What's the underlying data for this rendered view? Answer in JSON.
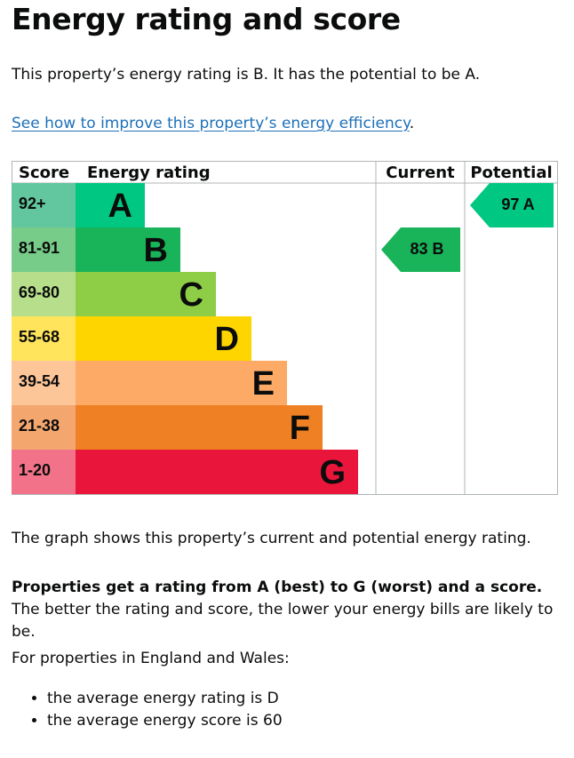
{
  "heading": "Energy rating and score",
  "intro": "This property’s energy rating is B. It has the potential to be A.",
  "improve_link": "See how to improve this property’s energy efficiency",
  "improve_suffix": ".",
  "chart_data": {
    "type": "table",
    "headers": {
      "score": "Score",
      "rating": "Energy rating",
      "current": "Current",
      "potential": "Potential"
    },
    "bands": [
      {
        "letter": "A",
        "range": "92+",
        "color": "#008054",
        "bar": "#00c781",
        "score_bg": "#62c69e"
      },
      {
        "letter": "B",
        "range": "81-91",
        "color": "#19b459",
        "bar": "#19b459",
        "score_bg": "#76cc88"
      },
      {
        "letter": "C",
        "range": "69-80",
        "color": "#8dce46",
        "bar": "#8dce46",
        "score_bg": "#b7df8b"
      },
      {
        "letter": "D",
        "range": "55-68",
        "color": "#ffd500",
        "bar": "#ffd500",
        "score_bg": "#ffe45c"
      },
      {
        "letter": "E",
        "range": "39-54",
        "color": "#fcaa65",
        "bar": "#fcaa65",
        "score_bg": "#fdc698"
      },
      {
        "letter": "F",
        "range": "21-38",
        "color": "#ef8023",
        "bar": "#ef8023",
        "score_bg": "#f4a66f"
      },
      {
        "letter": "G",
        "range": "1-20",
        "color": "#e9153b",
        "bar": "#e9153b",
        "score_bg": "#f27289"
      }
    ],
    "current": {
      "score": 83,
      "letter": "B",
      "label": "83  B",
      "color": "#19b459"
    },
    "potential": {
      "score": 97,
      "letter": "A",
      "label": "97  A",
      "color": "#00c781"
    }
  },
  "graph_caption": "The graph shows this property’s current and potential energy rating.",
  "explain_bold": "Properties get a rating from A (best) to G (worst) and a score.",
  "explain_rest": " The better the rating and score, the lower your energy bills are likely to be.",
  "england_intro": "For properties in England and Wales:",
  "averages": [
    "the average energy rating is D",
    "the average energy score is 60"
  ]
}
